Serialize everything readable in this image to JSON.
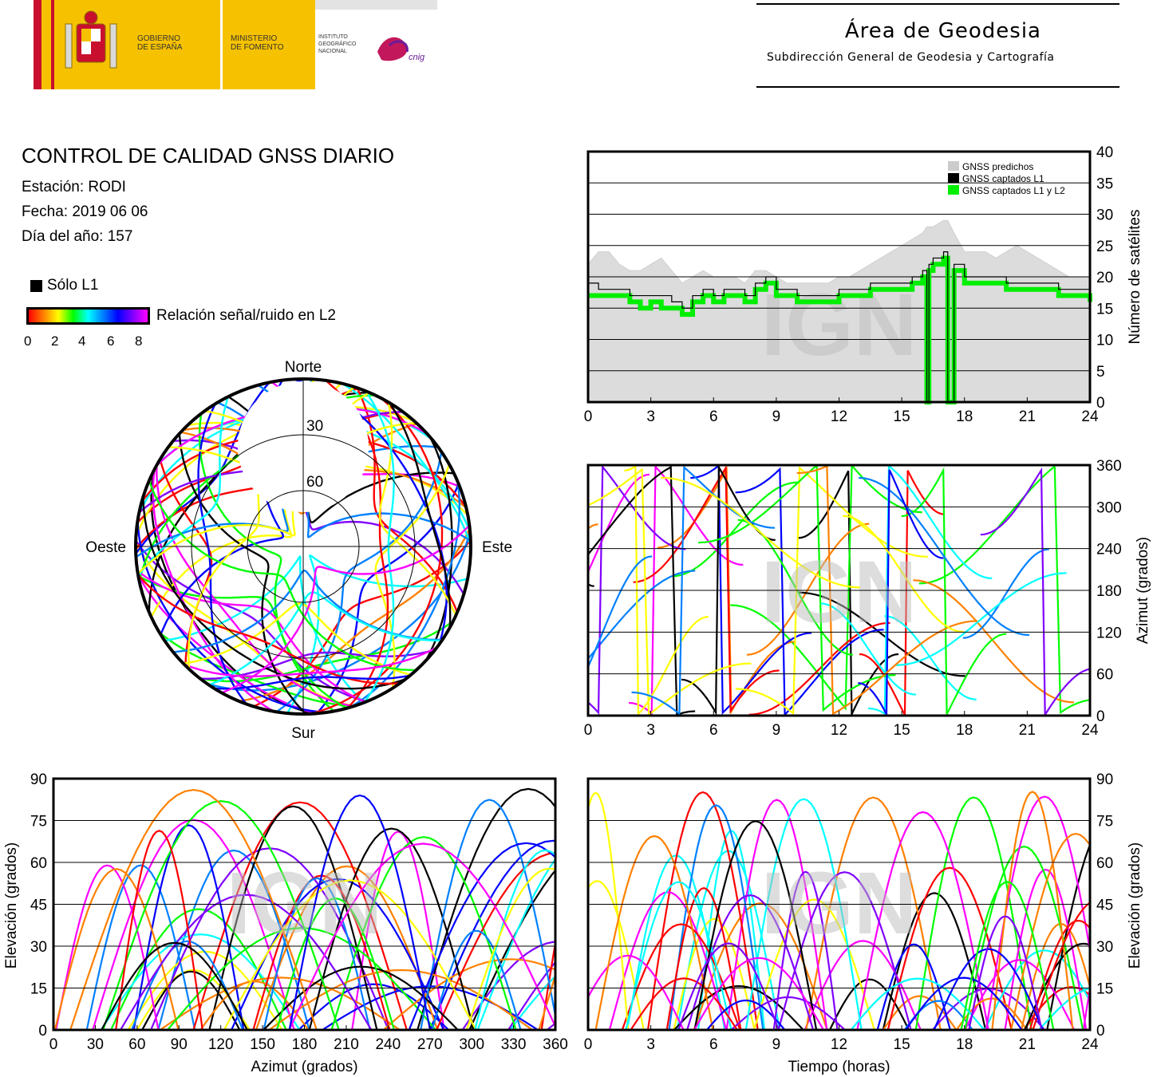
{
  "header": {
    "gov_line1": "GOBIERNO",
    "gov_line2": "DE ESPAÑA",
    "min_line1": "MINISTERIO",
    "min_line2": "DE FOMENTO",
    "ign_line1": "INSTITUTO",
    "ign_line2": "GEOGRÁFICO",
    "ign_line3": "NACIONAL",
    "cnig": "cnig",
    "area_title": "Área de Geodesia",
    "area_subtitle": "Subdirección General de Geodesia y Cartografía"
  },
  "report": {
    "title": "CONTROL DE CALIDAD GNSS DIARIO",
    "station": "Estación: RODI",
    "date": "Fecha: 2019 06 06",
    "doy": "Día del año: 157"
  },
  "legend": {
    "l1_only": "Sólo L1",
    "snr_label": "Relación señal/ruido en L2",
    "snr_ticks": [
      "0",
      "2",
      "4",
      "6",
      "8"
    ],
    "colors": [
      "#ff0000",
      "#ff8000",
      "#ffff00",
      "#00ff00",
      "#00ffff",
      "#0080ff",
      "#0000ff",
      "#8000ff",
      "#ff00ff"
    ]
  },
  "watermark": "IGN",
  "chart_data": [
    {
      "id": "skyplot",
      "type": "scatter",
      "title": "",
      "directions": {
        "north": "Norte",
        "south": "Sur",
        "east": "Este",
        "west": "Oeste"
      },
      "elevation_rings": [
        "30",
        "60"
      ],
      "note": ""
    },
    {
      "id": "satellites",
      "type": "area",
      "title": "",
      "xlabel": "",
      "ylabel": "Número de satélites",
      "xlim": [
        0,
        24
      ],
      "ylim": [
        0,
        40
      ],
      "xticks": [
        "0",
        "3",
        "6",
        "9",
        "12",
        "15",
        "18",
        "21",
        "24"
      ],
      "yticks": [
        "0",
        "5",
        "10",
        "15",
        "20",
        "25",
        "30",
        "35",
        "40"
      ],
      "legend": [
        "GNSS predichos",
        "GNSS captados L1",
        "GNSS captados L1 y L2"
      ],
      "x": [
        0,
        0.5,
        1,
        1.5,
        2,
        2.5,
        3,
        3.5,
        4,
        4.5,
        5,
        5.5,
        6,
        6.5,
        7,
        7.5,
        8,
        8.5,
        9,
        9.5,
        10,
        10.5,
        11,
        11.5,
        12,
        12.5,
        13,
        13.5,
        14,
        14.5,
        15,
        15.5,
        16,
        16.2,
        16.3,
        16.5,
        17,
        17.2,
        17.5,
        18,
        18.5,
        19,
        19.5,
        20,
        20.5,
        21,
        21.5,
        22,
        22.5,
        23,
        23.5,
        24
      ],
      "series": [
        {
          "name": "GNSS predichos",
          "values": [
            22,
            24,
            24,
            22,
            21,
            21,
            22,
            23,
            21,
            19,
            20,
            21,
            20,
            20,
            20,
            19,
            21,
            21,
            20,
            19,
            19,
            19,
            19,
            19,
            20,
            20,
            21,
            22,
            23,
            24,
            25,
            26,
            27,
            28,
            28,
            28,
            29,
            29,
            27,
            24,
            24,
            24,
            23,
            24,
            25,
            24,
            23,
            22,
            21,
            20,
            20,
            20
          ]
        },
        {
          "name": "GNSS captados L1",
          "values": [
            19,
            18,
            18,
            18,
            17,
            17,
            17,
            17,
            16,
            15,
            17,
            18,
            17,
            18,
            18,
            17,
            19,
            20,
            18,
            18,
            17,
            17,
            17,
            17,
            18,
            18,
            18,
            19,
            19,
            19,
            19,
            20,
            21,
            0,
            22,
            23,
            24,
            0,
            22,
            20,
            20,
            20,
            20,
            19,
            19,
            19,
            19,
            19,
            18,
            18,
            18,
            18
          ]
        },
        {
          "name": "GNSS captados L1 y L2",
          "values": [
            17,
            17,
            17,
            17,
            16,
            15,
            16,
            15,
            15,
            14,
            16,
            17,
            16,
            17,
            17,
            16,
            18,
            19,
            17,
            17,
            16,
            16,
            16,
            16,
            17,
            17,
            17,
            18,
            18,
            18,
            18,
            19,
            20,
            0,
            21,
            22,
            23,
            0,
            21,
            19,
            19,
            19,
            19,
            18,
            18,
            18,
            18,
            18,
            17,
            17,
            17,
            16
          ]
        }
      ]
    },
    {
      "id": "azimuth",
      "type": "scatter",
      "title": "",
      "xlabel": "",
      "ylabel": "Azimut (grados)",
      "xlim": [
        0,
        24
      ],
      "ylim": [
        0,
        360
      ],
      "xticks": [
        "0",
        "3",
        "6",
        "9",
        "12",
        "15",
        "18",
        "21",
        "24"
      ],
      "yticks": [
        "0",
        "60",
        "120",
        "180",
        "240",
        "300",
        "360"
      ]
    },
    {
      "id": "elev-az",
      "type": "scatter",
      "title": "",
      "xlabel": "Azimut (grados)",
      "ylabel": "Elevación (grados)",
      "xlim": [
        0,
        360
      ],
      "ylim": [
        0,
        90
      ],
      "xticks": [
        "0",
        "30",
        "60",
        "90",
        "120",
        "150",
        "180",
        "210",
        "240",
        "270",
        "300",
        "330",
        "360"
      ],
      "yticks": [
        "0",
        "15",
        "30",
        "45",
        "60",
        "75",
        "90"
      ]
    },
    {
      "id": "elev-time",
      "type": "scatter",
      "title": "",
      "xlabel": "Tiempo (horas)",
      "ylabel": "Elevación (grados)",
      "xlim": [
        0,
        24
      ],
      "ylim": [
        0,
        90
      ],
      "xticks": [
        "0",
        "3",
        "6",
        "9",
        "12",
        "15",
        "18",
        "21",
        "24"
      ],
      "yticks": [
        "0",
        "15",
        "30",
        "45",
        "60",
        "75",
        "90"
      ]
    }
  ]
}
